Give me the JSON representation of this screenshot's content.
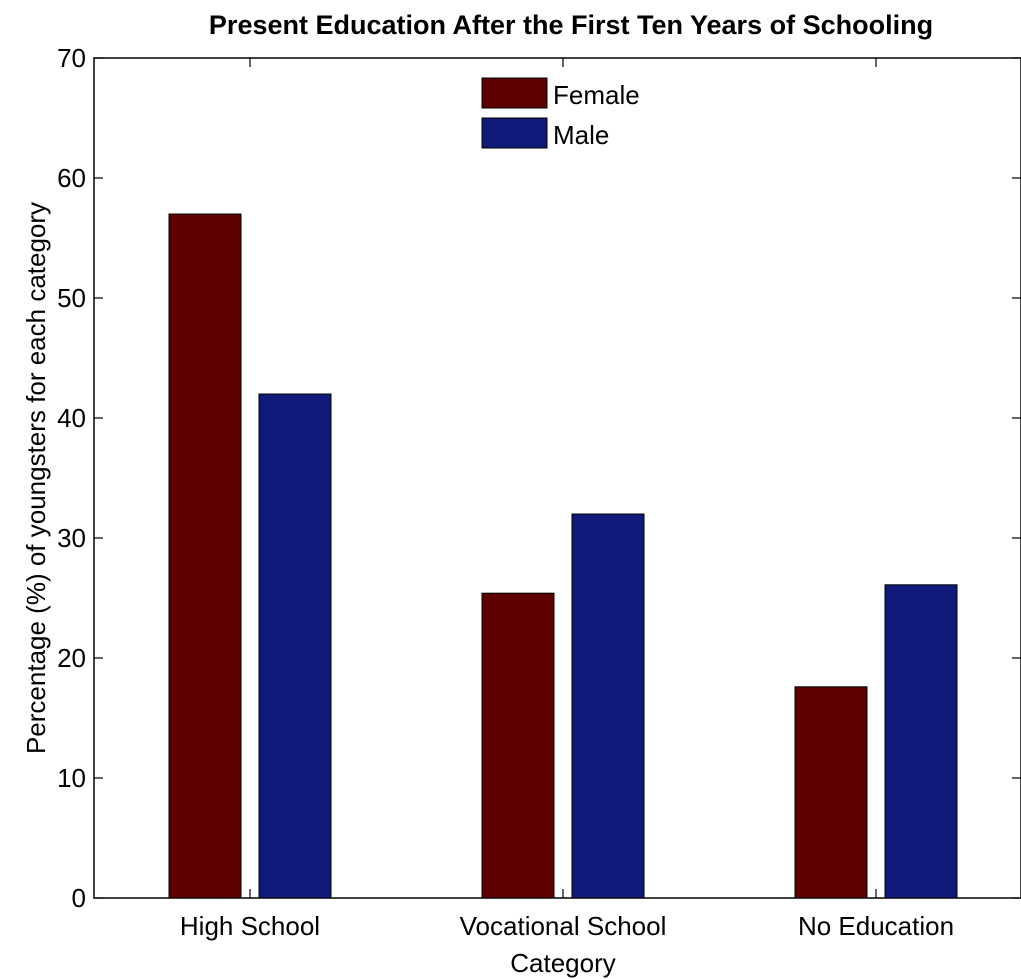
{
  "chart_data": {
    "type": "bar",
    "title": "Present Education After the First Ten Years of Schooling",
    "xlabel": "Category",
    "ylabel": "Percentage (%) of youngsters for each category",
    "categories": [
      "High School",
      "Vocational School",
      "No Education"
    ],
    "series": [
      {
        "name": "Female",
        "color": "#5c0000",
        "values": [
          57,
          25.4,
          17.6
        ]
      },
      {
        "name": "Male",
        "color": "#0f1a7a",
        "values": [
          42,
          32,
          26.1
        ]
      }
    ],
    "ylim": [
      0,
      70
    ],
    "yticks": [
      0,
      10,
      20,
      30,
      40,
      50,
      60,
      70
    ],
    "grid": false,
    "legend_position": "top-center"
  }
}
